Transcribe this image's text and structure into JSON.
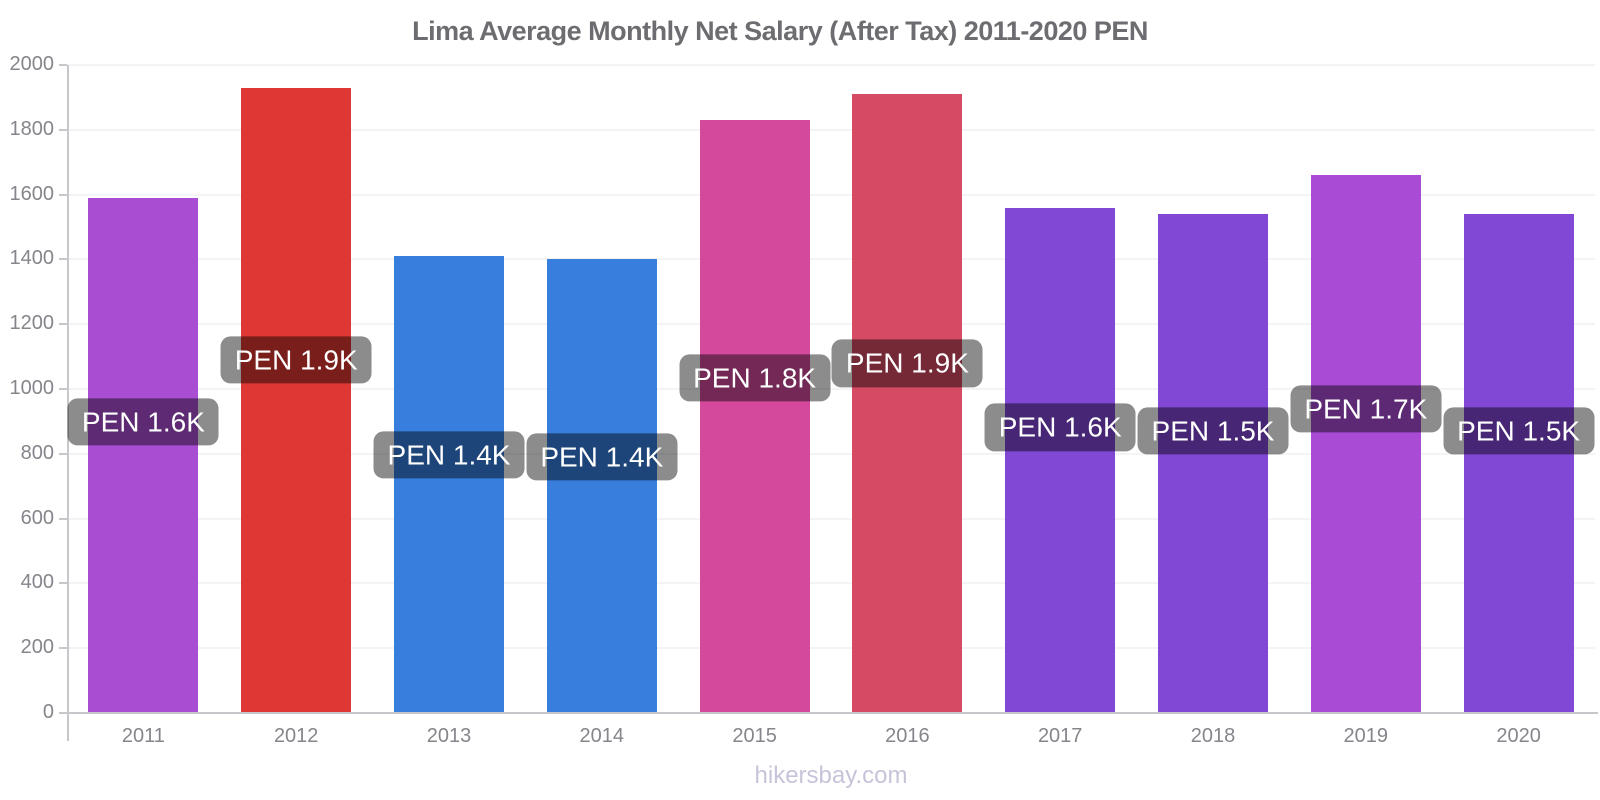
{
  "title": "Lima Average Monthly Net Salary (After Tax) 2011-2020 PEN",
  "footer": "hikersbay.com",
  "chart_data": {
    "type": "bar",
    "title": "Lima Average Monthly Net Salary (After Tax) 2011-2020 PEN",
    "categories": [
      "2011",
      "2012",
      "2013",
      "2014",
      "2015",
      "2016",
      "2017",
      "2018",
      "2019",
      "2020"
    ],
    "values": [
      1590,
      1930,
      1410,
      1400,
      1830,
      1910,
      1560,
      1540,
      1660,
      1540
    ],
    "value_labels": [
      "PEN 1.6K",
      "PEN 1.9K",
      "PEN 1.4K",
      "PEN 1.4K",
      "PEN 1.8K",
      "PEN 1.9K",
      "PEN 1.6K",
      "PEN 1.5K",
      "PEN 1.7K",
      "PEN 1.5K"
    ],
    "bar_colors": [
      "#a94ed2",
      "#df3834",
      "#387edd",
      "#387edd",
      "#d4499c",
      "#d54b64",
      "#8148d6",
      "#8148d6",
      "#a94bd5",
      "#8148d6"
    ],
    "ylim": [
      0,
      2000
    ],
    "yticks": [
      0,
      200,
      400,
      600,
      800,
      1000,
      1200,
      1400,
      1600,
      1800,
      2000
    ],
    "xlabel": "",
    "ylabel": "",
    "legend": "none",
    "grid": "horizontal-faint",
    "value_label_style": {
      "background": "rgba(0,0,0,0.45)",
      "text_color": "#ffffff"
    }
  },
  "colors": {
    "title_text": "#6d6d71",
    "axis_line": "#c8c8cc",
    "tick_text": "#85858b",
    "gridline": "#f4f4f7",
    "footer_text": "#c9c3da",
    "background": "#ffffff"
  }
}
